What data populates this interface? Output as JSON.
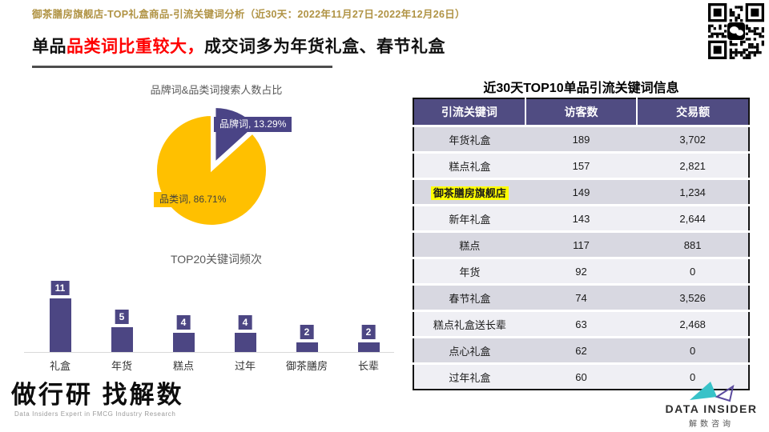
{
  "page": {
    "breadcrumb": "御茶膳房旗舰店-TOP礼盒商品-引流关键词分析（近30天：2022年11月27日-2022年12月26日）",
    "title_prefix": "单品",
    "title_highlight": "品类词比重较大，",
    "title_suffix": "成交词多为年货礼盒、春节礼盒"
  },
  "colors": {
    "breadcrumb_gold": "#B09344",
    "title_red": "#FF0000",
    "purple": "#4C4683",
    "pie_purple": "#4A4486",
    "pie_yellow": "#FFC000",
    "table_header_bg": "#504C82",
    "row_dark": "#D8D8E1",
    "row_light": "#EFEFF4",
    "keyword_highlight": "#FFFF00"
  },
  "icons": {
    "qr": "wechat-qr-code",
    "logo": "bowtie-triangles"
  },
  "chart_data": [
    {
      "type": "pie",
      "title": "品牌词&品类词搜索人数占比",
      "slices": [
        {
          "label": "品牌词",
          "value": 13.29,
          "display": "品牌词, 13.29%",
          "color": "#4A4486",
          "exploded": true
        },
        {
          "label": "品类词",
          "value": 86.71,
          "display": "品类词, 86.71%",
          "color": "#FFC000",
          "exploded": false
        }
      ],
      "legend_position": "data-labels",
      "start_angle": "12-oclock-clockwise"
    },
    {
      "type": "bar",
      "title": "TOP20关键词频次",
      "categories": [
        "礼盒",
        "年货",
        "糕点",
        "过年",
        "御茶膳房",
        "长辈"
      ],
      "values": [
        11,
        5,
        4,
        4,
        2,
        2
      ],
      "bar_color": "#4C4683",
      "data_labels": true,
      "grid": false,
      "xlabel": "",
      "ylabel": "",
      "ylim": [
        0,
        12
      ]
    }
  ],
  "table": {
    "title": "近30天TOP10单品引流关键词信息",
    "columns": [
      "引流关键词",
      "访客数",
      "交易额"
    ],
    "rows": [
      {
        "keyword": "年货礼盒",
        "visitors": "189",
        "transaction": "3,702",
        "highlight": false
      },
      {
        "keyword": "糕点礼盒",
        "visitors": "157",
        "transaction": "2,821",
        "highlight": false
      },
      {
        "keyword": "御茶膳房旗舰店",
        "visitors": "149",
        "transaction": "1,234",
        "highlight": true
      },
      {
        "keyword": "新年礼盒",
        "visitors": "143",
        "transaction": "2,644",
        "highlight": false
      },
      {
        "keyword": "糕点",
        "visitors": "117",
        "transaction": "881",
        "highlight": false
      },
      {
        "keyword": "年货",
        "visitors": "92",
        "transaction": "0",
        "highlight": false
      },
      {
        "keyword": "春节礼盒",
        "visitors": "74",
        "transaction": "3,526",
        "highlight": false
      },
      {
        "keyword": "糕点礼盒送长辈",
        "visitors": "63",
        "transaction": "2,468",
        "highlight": false
      },
      {
        "keyword": "点心礼盒",
        "visitors": "62",
        "transaction": "0",
        "highlight": false
      },
      {
        "keyword": "过年礼盒",
        "visitors": "60",
        "transaction": "0",
        "highlight": false
      }
    ]
  },
  "footer": {
    "left_logo_title": "做行研 找解数",
    "left_logo_subtitle": "Data Insiders Expert in FMCG Industry Research",
    "right_logo_name": "DATA INSIDER",
    "right_logo_cn": "解数咨询"
  }
}
